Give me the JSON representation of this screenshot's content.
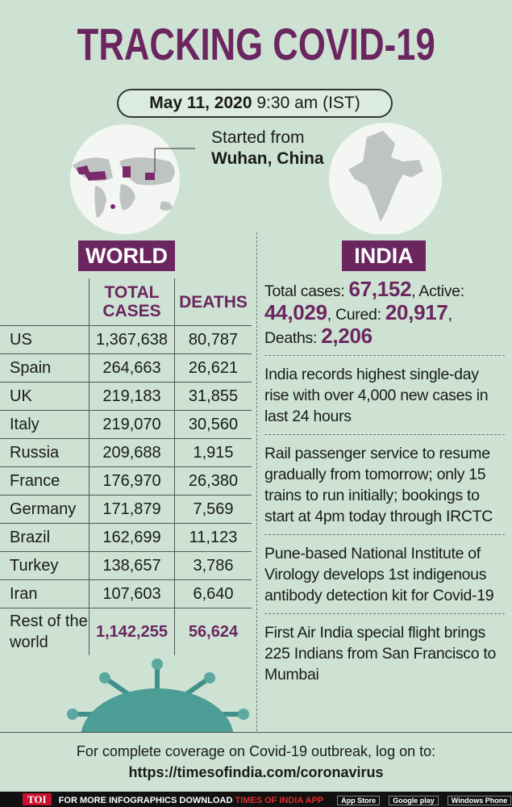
{
  "header": {
    "title": "TRACKING COVID-19",
    "date": "May 11, 2020",
    "time": "9:30 am (IST)"
  },
  "origin": {
    "label": "Started from",
    "place": "Wuhan, China"
  },
  "world": {
    "heading": "WORLD",
    "columns": [
      "TOTAL CASES",
      "DEATHS"
    ],
    "rows": [
      [
        "US",
        "1,367,638",
        "80,787"
      ],
      [
        "Spain",
        "264,663",
        "26,621"
      ],
      [
        "UK",
        "219,183",
        "31,855"
      ],
      [
        "Italy",
        "219,070",
        "30,560"
      ],
      [
        "Russia",
        "209,688",
        "1,915"
      ],
      [
        "France",
        "176,970",
        "26,380"
      ],
      [
        "Germany",
        "171,879",
        "7,569"
      ],
      [
        "Brazil",
        "162,699",
        "11,123"
      ],
      [
        "Turkey",
        "138,657",
        "3,786"
      ],
      [
        "Iran",
        "107,603",
        "6,640"
      ],
      [
        "Rest of the world",
        "1,142,255",
        "56,624"
      ]
    ]
  },
  "india": {
    "heading": "INDIA",
    "stats": [
      {
        "label": "Total cases:",
        "value": "67,152"
      },
      {
        "label": ", Active:",
        "value": "44,029"
      },
      {
        "label": ", Cured:",
        "value": "20,917"
      },
      {
        "label": ", Deaths:",
        "value": "2,206"
      }
    ],
    "news": [
      "India records highest single-day rise with over 4,000 new cases in last 24 hours",
      "Rail passenger service to resume gradually from tomorrow; only 15 trains to run initially; bookings to start at 4pm today through IRCTC",
      "Pune-based National Institute of Virology develops 1st indigenous antibody detection kit for Covid-19",
      "First Air India special flight brings 225 Indians from San Francisco to Mumbai"
    ]
  },
  "footer": {
    "text": "For complete coverage on Covid-19 outbreak, log on to:",
    "url": "https://timesofindia.com/coronavirus"
  },
  "bottom_bar": {
    "logo": "TOI",
    "promo": "FOR MORE  INFOGRAPHICS DOWNLOAD",
    "app": "TIMES OF INDIA APP",
    "stores": [
      "App Store",
      "Google play",
      "Windows Phone"
    ]
  }
}
